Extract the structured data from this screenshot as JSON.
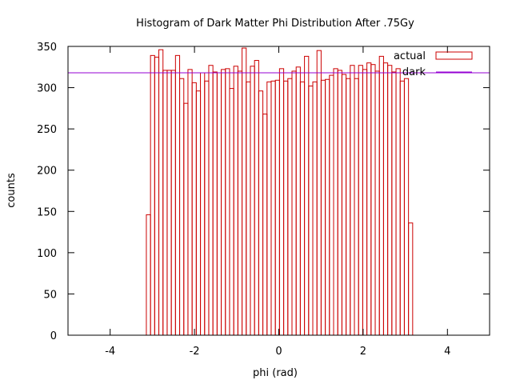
{
  "chart_data": {
    "type": "bar",
    "title": "Histogram of Dark Matter Phi Distribution After .75Gy",
    "xlabel": "phi (rad)",
    "ylabel": "counts",
    "xlim": [
      -5,
      5
    ],
    "ylim": [
      0,
      350
    ],
    "xticks": [
      -4,
      -2,
      0,
      2,
      4
    ],
    "yticks": [
      0,
      50,
      100,
      150,
      200,
      250,
      300,
      350
    ],
    "grid": false,
    "legend_position": "top-right",
    "bin_start": -3.1416,
    "bin_width": 0.0987,
    "series": [
      {
        "name": "actual",
        "kind": "histogram",
        "color": "#cc0000",
        "values": [
          146,
          339,
          337,
          346,
          321,
          321,
          321,
          339,
          311,
          281,
          322,
          306,
          296,
          318,
          308,
          327,
          319,
          318,
          322,
          323,
          299,
          326,
          320,
          348,
          307,
          326,
          333,
          296,
          268,
          307,
          308,
          309,
          323,
          308,
          311,
          320,
          325,
          307,
          338,
          302,
          307,
          345,
          309,
          310,
          315,
          323,
          321,
          316,
          311,
          327,
          311,
          327,
          322,
          330,
          328,
          320,
          338,
          330,
          327,
          319,
          323,
          308,
          311,
          136
        ]
      },
      {
        "name": "dark",
        "kind": "line",
        "color": "#9400d3",
        "y": 318
      }
    ]
  }
}
